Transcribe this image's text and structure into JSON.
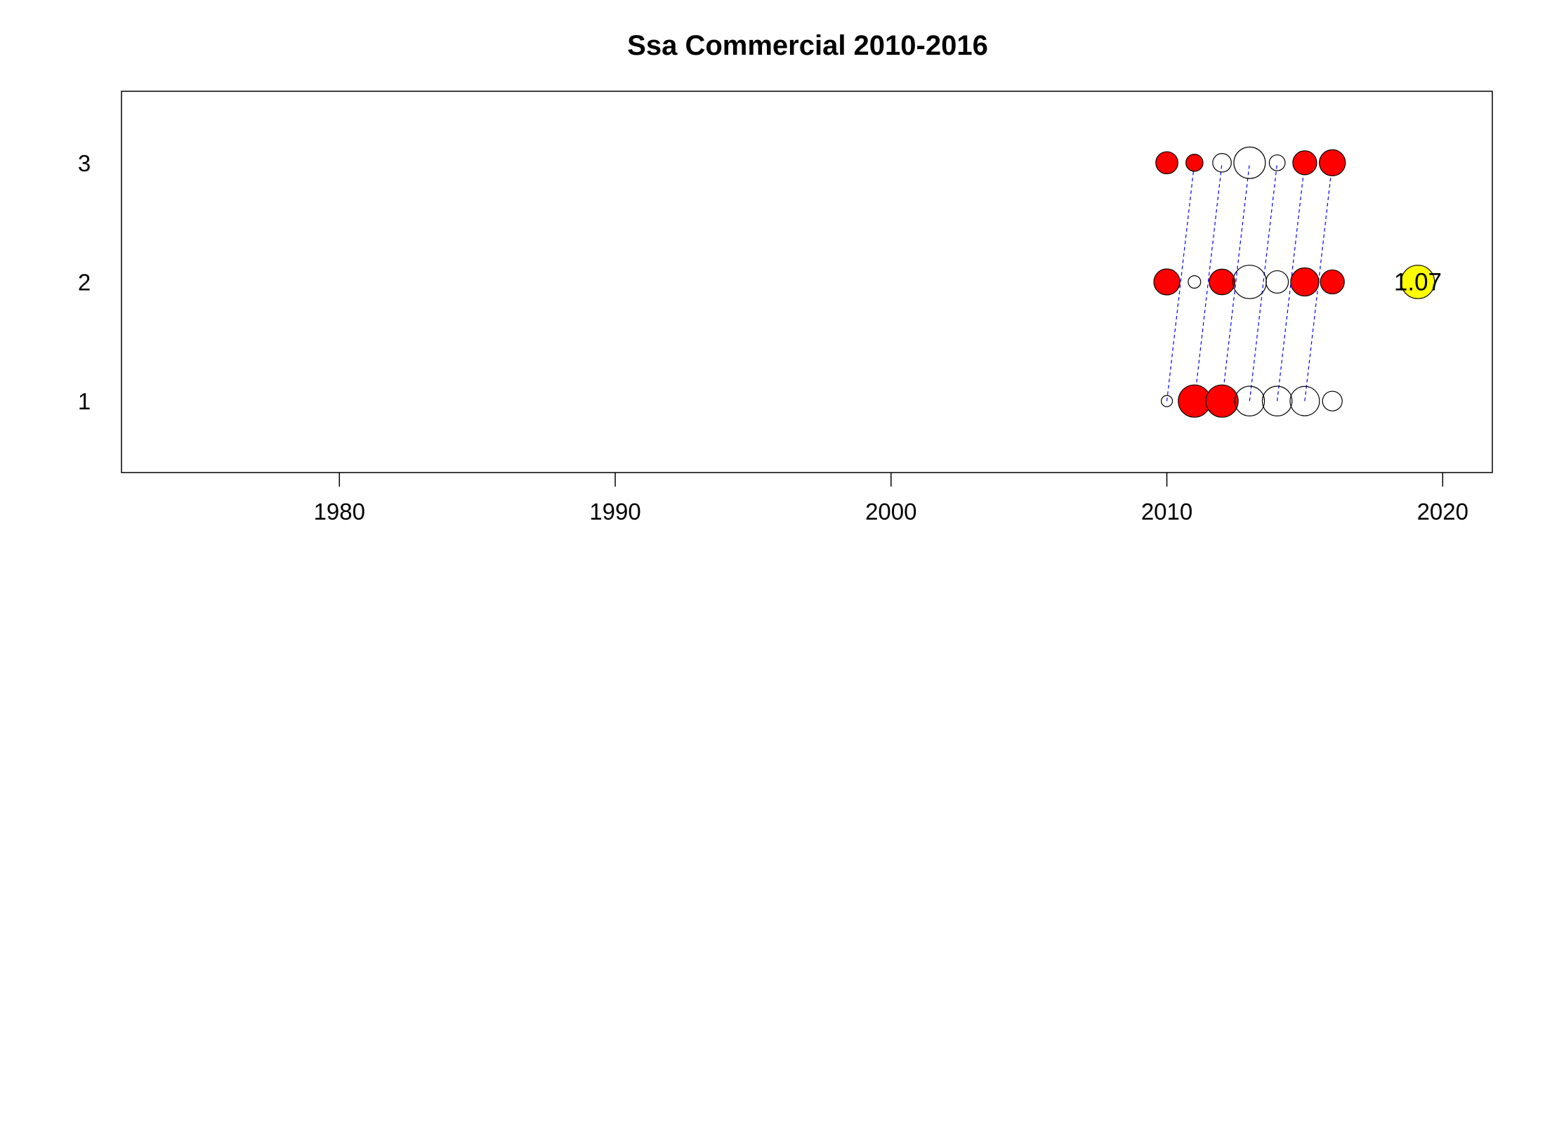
{
  "chart_data": {
    "type": "scatter",
    "title": "Ssa Commercial 2010-2016",
    "xlabel": "",
    "ylabel": "",
    "xlim": [
      1972.1,
      2021.8
    ],
    "ylim": [
      0.4,
      3.6
    ],
    "x_ticks": [
      1980,
      1990,
      2000,
      2010,
      2020
    ],
    "y_ticks": [
      1,
      2,
      3
    ],
    "grid": false,
    "colors": {
      "positive": "#FF0000",
      "negative": "#FFFFFF",
      "outline": "#000000",
      "cohort_line": "#0000FF",
      "legend_fill": "#FFFF00"
    },
    "bubbles": [
      {
        "year": 2010,
        "age": 1,
        "size": 0.12,
        "sign": "negative"
      },
      {
        "year": 2011,
        "age": 1,
        "size": 1.0,
        "sign": "positive"
      },
      {
        "year": 2012,
        "age": 1,
        "size": 1.0,
        "sign": "positive"
      },
      {
        "year": 2013,
        "age": 1,
        "size": 0.85,
        "sign": "negative"
      },
      {
        "year": 2014,
        "age": 1,
        "size": 0.85,
        "sign": "negative"
      },
      {
        "year": 2015,
        "age": 1,
        "size": 0.83,
        "sign": "negative"
      },
      {
        "year": 2016,
        "age": 1,
        "size": 0.37,
        "sign": "negative"
      },
      {
        "year": 2010,
        "age": 2,
        "size": 0.65,
        "sign": "positive"
      },
      {
        "year": 2011,
        "age": 2,
        "size": 0.15,
        "sign": "negative"
      },
      {
        "year": 2012,
        "age": 2,
        "size": 0.63,
        "sign": "positive"
      },
      {
        "year": 2013,
        "age": 2,
        "size": 1.07,
        "sign": "negative"
      },
      {
        "year": 2014,
        "age": 2,
        "size": 0.48,
        "sign": "negative"
      },
      {
        "year": 2015,
        "age": 2,
        "size": 0.76,
        "sign": "positive"
      },
      {
        "year": 2016,
        "age": 2,
        "size": 0.55,
        "sign": "positive"
      },
      {
        "year": 2010,
        "age": 3,
        "size": 0.47,
        "sign": "positive"
      },
      {
        "year": 2011,
        "age": 3,
        "size": 0.28,
        "sign": "positive"
      },
      {
        "year": 2012,
        "age": 3,
        "size": 0.33,
        "sign": "negative"
      },
      {
        "year": 2013,
        "age": 3,
        "size": 0.95,
        "sign": "negative"
      },
      {
        "year": 2014,
        "age": 3,
        "size": 0.24,
        "sign": "negative"
      },
      {
        "year": 2015,
        "age": 3,
        "size": 0.55,
        "sign": "positive"
      },
      {
        "year": 2016,
        "age": 3,
        "size": 0.65,
        "sign": "positive"
      }
    ],
    "cohort_lines": [
      {
        "from": [
          2010,
          1
        ],
        "to": [
          2011,
          3
        ]
      },
      {
        "from": [
          2011,
          1
        ],
        "to": [
          2012,
          3
        ]
      },
      {
        "from": [
          2012,
          1
        ],
        "to": [
          2013,
          3
        ]
      },
      {
        "from": [
          2013,
          1
        ],
        "to": [
          2014,
          3
        ]
      },
      {
        "from": [
          2014,
          1
        ],
        "to": [
          2015,
          3
        ]
      },
      {
        "from": [
          2015,
          1
        ],
        "to": [
          2016,
          3
        ]
      }
    ],
    "legend": {
      "label": "1.07",
      "year": 2019.1,
      "age": 2,
      "size": 1.07
    }
  }
}
